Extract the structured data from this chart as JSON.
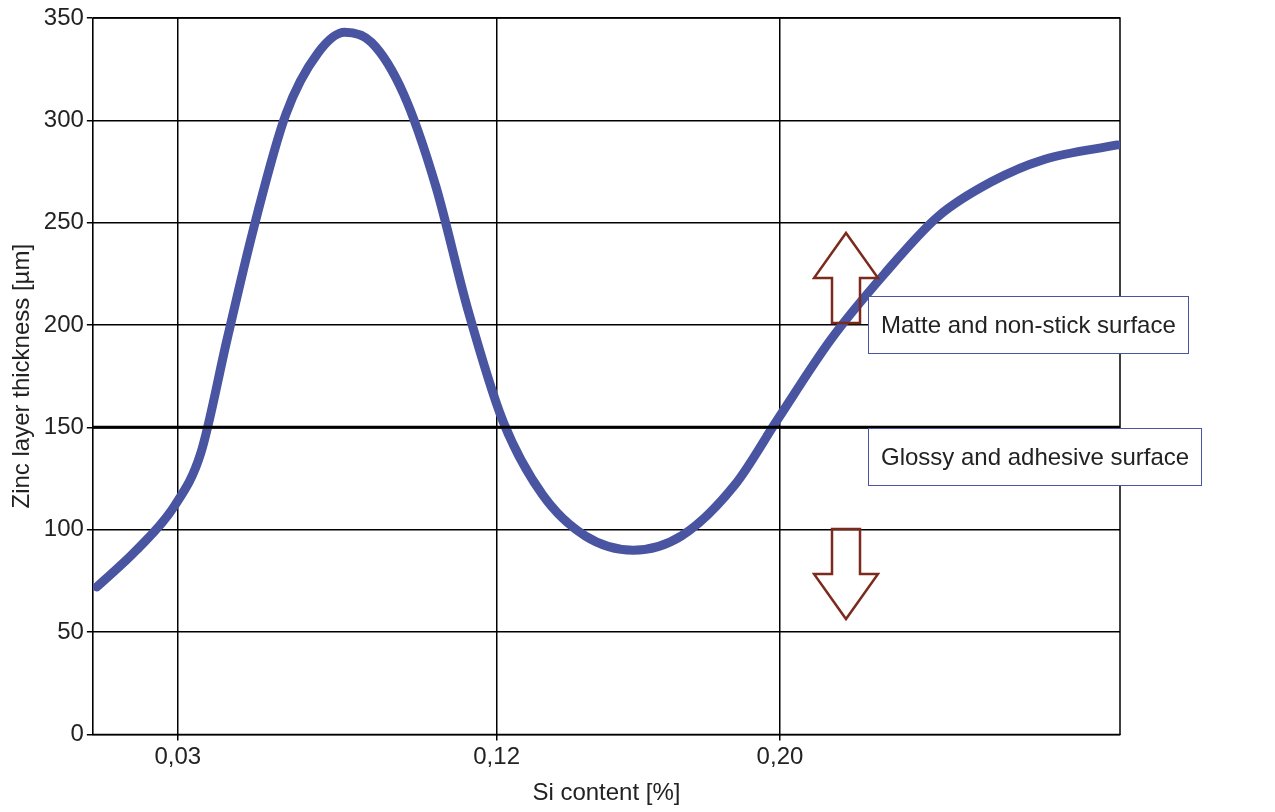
{
  "chart_data": {
    "type": "line",
    "xlabel": "Si content [%]",
    "ylabel": "Zinc layer thickness [µm]",
    "xlim": [
      0.006,
      0.296
    ],
    "xticks": [
      {
        "value": 0.03,
        "label": "0,03"
      },
      {
        "value": 0.12,
        "label": "0,12"
      },
      {
        "value": 0.2,
        "label": "0,20"
      }
    ],
    "ylim": [
      0,
      350
    ],
    "yticks": [
      0,
      50,
      100,
      150,
      200,
      250,
      300,
      350
    ],
    "grid": true,
    "marker": "none",
    "line_style": "solid",
    "series": [
      {
        "color": "#4a55a2",
        "x": [
          0.0071,
          0.0183,
          0.0292,
          0.0364,
          0.0439,
          0.0515,
          0.0605,
          0.0696,
          0.0771,
          0.0847,
          0.0937,
          0.1028,
          0.1118,
          0.1218,
          0.133,
          0.145,
          0.1586,
          0.1722,
          0.1873,
          0.199,
          0.2144,
          0.2295,
          0.2446,
          0.2597,
          0.2748,
          0.2953
        ],
        "values": [
          72,
          90,
          112,
          137,
          193,
          248,
          303,
          333,
          343,
          338,
          313,
          268,
          208,
          153,
          117,
          97,
          90,
          97,
          122,
          153,
          193,
          225,
          253,
          270,
          281,
          288
        ]
      }
    ],
    "ref_lines": [
      {
        "axis": "y",
        "value": 150,
        "color": "#000000"
      }
    ],
    "annotations": [
      "Matte and non-stick surface",
      "Glossy and adhesive surface"
    ]
  }
}
